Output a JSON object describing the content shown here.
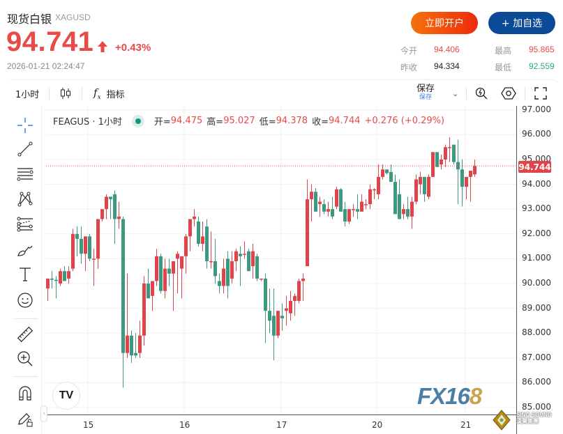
{
  "header": {
    "title": "现货白银",
    "symbol": "XAGUSD",
    "price": "94.741",
    "change_pct": "+0.43%",
    "timestamp": "2026-01-21 02:24:47",
    "buttons": {
      "open_account": "立即开户",
      "add_watchlist": "+ 加自选"
    },
    "stats": {
      "open_label": "今开",
      "open": "94.406",
      "high_label": "最高",
      "high": "95.865",
      "prev_close_label": "昨收",
      "prev_close": "94.334",
      "low_label": "最低",
      "low": "92.559"
    },
    "colors": {
      "up": "#e84a45",
      "down": "#2aa889",
      "brand_orange": "#f5720a",
      "brand_blue": "#0b4a96"
    }
  },
  "toolbar": {
    "interval": "1小时",
    "chart_type_icon": "candlestick-icon",
    "indicators_label": "指标",
    "save_label": "保存",
    "save_sub": "保存",
    "icons": [
      "quick-search-icon",
      "settings-icon",
      "fullscreen-icon"
    ]
  },
  "sidebar": {
    "tools": [
      "crosshair-icon",
      "trend-line-icon",
      "horizontal-lines-icon",
      "pattern-icon",
      "fib-channel-icon",
      "brush-icon",
      "text-icon",
      "emoji-icon",
      "ruler-icon",
      "zoom-in-icon",
      "magnet-icon",
      "lock-drawing-icon"
    ]
  },
  "legend": {
    "name": "FEAGUS · 1小时",
    "open_label": "开=",
    "open": "94.475",
    "high_label": "高=",
    "high": "95.027",
    "low_label": "低=",
    "low": "94.378",
    "close_label": "收=",
    "close": "94.744",
    "change": "+0.276 (+0.29%)"
  },
  "last_price_tag": "94.744",
  "watermark": {
    "left_logo": "TV",
    "brand": "FX168",
    "corner": "SINO SOUND 漢聲集團"
  },
  "chart_data": {
    "type": "candlestick",
    "title": "FEAGUS · 1小时",
    "xlabel": "",
    "ylabel": "",
    "ylim": [
      84.8,
      97.2
    ],
    "grid": true,
    "y_ticks": [
      "97.000",
      "96.000",
      "95.000",
      "94.000",
      "93.000",
      "92.000",
      "91.000",
      "90.000",
      "89.000",
      "88.000",
      "87.000",
      "86.000",
      "85.000"
    ],
    "x_ticks": [
      {
        "label": "15",
        "x": 126
      },
      {
        "label": "16",
        "x": 264
      },
      {
        "label": "17",
        "x": 403
      },
      {
        "label": "20",
        "x": 540
      },
      {
        "label": "21",
        "x": 667
      }
    ],
    "last_price": 94.744,
    "up_color": "#e0434a",
    "down_color": "#3d9880",
    "candles": [
      [
        68,
        89.8,
        90.2,
        89.3,
        90.2
      ],
      [
        74,
        90.2,
        90.5,
        89.8,
        90.15
      ],
      [
        80,
        90.15,
        90.3,
        89.4,
        90.1
      ],
      [
        86,
        90.0,
        90.6,
        89.9,
        90.5
      ],
      [
        92,
        90.5,
        90.7,
        90.1,
        90.1
      ],
      [
        98,
        90.2,
        90.7,
        90.0,
        90.5
      ],
      [
        104,
        90.6,
        92.2,
        90.5,
        92.0
      ],
      [
        110,
        92.0,
        92.3,
        91.1,
        91.8
      ],
      [
        116,
        91.8,
        92.3,
        90.8,
        91.2
      ],
      [
        122,
        91.2,
        91.9,
        90.5,
        91.9
      ],
      [
        128,
        91.9,
        92.0,
        90.9,
        91.0
      ],
      [
        134,
        91.0,
        91.4,
        89.9,
        91.0
      ],
      [
        140,
        91.0,
        92.6,
        90.6,
        92.6
      ],
      [
        146,
        92.6,
        93.0,
        92.5,
        93.0
      ],
      [
        152,
        93.0,
        93.6,
        92.6,
        93.5
      ],
      [
        158,
        93.5,
        93.5,
        92.6,
        93.4
      ],
      [
        164,
        93.6,
        93.75,
        91.6,
        92.6
      ],
      [
        170,
        92.6,
        93.3,
        92.2,
        92.7
      ],
      [
        176,
        92.6,
        92.7,
        85.8,
        87.2
      ],
      [
        182,
        87.2,
        90.4,
        87.0,
        87.9
      ],
      [
        188,
        87.9,
        88.1,
        86.8,
        87.1
      ],
      [
        194,
        87.2,
        88.0,
        87.0,
        87.1
      ],
      [
        200,
        87.2,
        88.5,
        87.0,
        87.9
      ],
      [
        206,
        87.9,
        90.3,
        87.5,
        90.0
      ],
      [
        212,
        90.0,
        90.6,
        89.6,
        89.4
      ],
      [
        218,
        89.5,
        90.1,
        88.9,
        90.1
      ],
      [
        224,
        90.1,
        91.4,
        89.9,
        91.1
      ],
      [
        230,
        91.1,
        91.2,
        89.6,
        89.7
      ],
      [
        236,
        89.7,
        91.0,
        89.4,
        90.6
      ],
      [
        242,
        90.6,
        91.0,
        89.9,
        90.4
      ],
      [
        248,
        90.4,
        90.9,
        88.9,
        90.9
      ],
      [
        254,
        91.0,
        91.3,
        89.6,
        91.2
      ],
      [
        260,
        90.6,
        91.1,
        89.4,
        91.1
      ],
      [
        266,
        91.1,
        92.0,
        90.4,
        91.9
      ],
      [
        272,
        91.9,
        92.5,
        91.3,
        92.6
      ],
      [
        278,
        92.6,
        93.0,
        92.3,
        92.7
      ],
      [
        284,
        92.5,
        92.7,
        91.5,
        91.6
      ],
      [
        290,
        91.6,
        92.5,
        91.3,
        91.9
      ],
      [
        296,
        92.3,
        92.6,
        90.6,
        90.9
      ],
      [
        302,
        90.9,
        92.1,
        90.6,
        90.9
      ],
      [
        308,
        90.9,
        91.8,
        90.0,
        90.3
      ],
      [
        314,
        90.1,
        90.4,
        89.6,
        89.9
      ],
      [
        320,
        89.9,
        91.0,
        89.6,
        90.6
      ],
      [
        326,
        91.0,
        91.3,
        89.4,
        89.9
      ],
      [
        332,
        90.2,
        91.3,
        90.0,
        90.9
      ],
      [
        338,
        90.9,
        91.4,
        90.5,
        91.3
      ],
      [
        344,
        91.2,
        91.5,
        89.9,
        91.1
      ],
      [
        350,
        91.2,
        91.7,
        91.0,
        91.2
      ],
      [
        356,
        91.3,
        91.4,
        90.5,
        90.5
      ],
      [
        362,
        90.7,
        91.6,
        90.2,
        91.3
      ],
      [
        368,
        91.1,
        91.2,
        90.1,
        90.2
      ],
      [
        374,
        90.2,
        90.2,
        90.1,
        90.2
      ],
      [
        380,
        90.2,
        90.4,
        87.6,
        88.9
      ],
      [
        386,
        88.9,
        89.8,
        88.0,
        88.5
      ],
      [
        392,
        88.7,
        89.8,
        86.9,
        87.9
      ],
      [
        398,
        87.9,
        88.9,
        87.8,
        88.9
      ],
      [
        404,
        88.7,
        89.2,
        88.1,
        88.6
      ],
      [
        410,
        88.9,
        89.5,
        88.3,
        89.0
      ],
      [
        416,
        88.8,
        89.7,
        88.5,
        89.3
      ],
      [
        422,
        89.3,
        89.6,
        88.7,
        89.5
      ],
      [
        428,
        89.3,
        90.2,
        89.2,
        90.1
      ],
      [
        434,
        90.1,
        90.4,
        89.3,
        90.2
      ],
      [
        440,
        90.7,
        94.2,
        90.7,
        93.4
      ],
      [
        446,
        93.4,
        94.0,
        92.5,
        93.7
      ],
      [
        452,
        93.7,
        93.85,
        92.9,
        92.9
      ],
      [
        458,
        93.2,
        93.5,
        92.7,
        93.3
      ],
      [
        464,
        93.2,
        93.4,
        92.8,
        92.9
      ],
      [
        470,
        92.9,
        93.3,
        92.7,
        93.0
      ],
      [
        476,
        93.0,
        93.5,
        92.6,
        92.7
      ],
      [
        482,
        93.1,
        93.9,
        93.0,
        93.8
      ],
      [
        488,
        93.8,
        93.85,
        92.9,
        92.9
      ],
      [
        494,
        93.0,
        93.3,
        92.3,
        92.5
      ],
      [
        500,
        92.5,
        93.0,
        92.4,
        93.0
      ],
      [
        506,
        93.0,
        93.2,
        92.7,
        93.0
      ],
      [
        512,
        93.0,
        93.6,
        92.6,
        92.9
      ],
      [
        518,
        92.9,
        93.6,
        92.9,
        93.3
      ],
      [
        524,
        93.2,
        93.4,
        93.0,
        93.2
      ],
      [
        530,
        93.2,
        94.0,
        93.0,
        93.8
      ],
      [
        536,
        93.8,
        93.85,
        93.4,
        93.8
      ],
      [
        542,
        93.6,
        94.8,
        93.4,
        94.3
      ],
      [
        548,
        94.3,
        94.8,
        94.2,
        94.6
      ],
      [
        554,
        94.6,
        94.6,
        94.4,
        94.45
      ],
      [
        560,
        94.5,
        94.8,
        94.5,
        94.1
      ],
      [
        566,
        94.1,
        94.4,
        92.8,
        92.8
      ],
      [
        572,
        93.6,
        94.2,
        92.6,
        92.6
      ],
      [
        578,
        92.8,
        93.2,
        92.6,
        93.0
      ],
      [
        584,
        93.0,
        93.5,
        92.6,
        92.7
      ],
      [
        590,
        92.7,
        93.5,
        92.2,
        93.3
      ],
      [
        596,
        93.3,
        94.4,
        93.2,
        94.2
      ],
      [
        602,
        94.0,
        94.5,
        93.6,
        94.3
      ],
      [
        608,
        94.3,
        94.3,
        93.3,
        93.6
      ],
      [
        614,
        93.5,
        94.4,
        93.4,
        94.3
      ],
      [
        620,
        94.3,
        95.3,
        94.3,
        95.3
      ],
      [
        626,
        95.3,
        95.3,
        94.7,
        94.7
      ],
      [
        632,
        94.8,
        95.2,
        94.6,
        95.0
      ],
      [
        638,
        95.0,
        95.6,
        94.7,
        95.5
      ],
      [
        644,
        95.5,
        95.9,
        94.9,
        95.5
      ],
      [
        650,
        95.6,
        95.6,
        94.8,
        94.9
      ],
      [
        656,
        94.9,
        95.8,
        93.2,
        94.6
      ],
      [
        662,
        94.6,
        95.0,
        93.1,
        93.9
      ],
      [
        668,
        93.9,
        94.2,
        93.4,
        94.3
      ],
      [
        674,
        94.3,
        94.5,
        93.3,
        94.55
      ],
      [
        680,
        94.4,
        95.0,
        94.3,
        94.74
      ]
    ]
  }
}
